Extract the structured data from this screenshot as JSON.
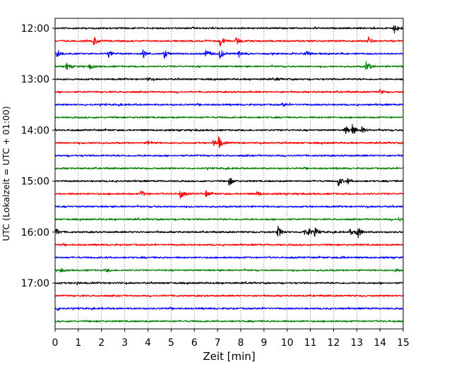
{
  "chart_data": {
    "type": "line",
    "title": "",
    "xlabel": "Zeit  [min]",
    "ylabel": "UTC (Lokalzeit = UTC + 01:00)",
    "xlim": [
      0,
      15
    ],
    "x_ticks": [
      "0",
      "1",
      "2",
      "3",
      "4",
      "5",
      "6",
      "7",
      "8",
      "9",
      "10",
      "11",
      "12",
      "13",
      "14",
      "15"
    ],
    "x_grid": "dotted vertical lines at each minute",
    "y_tick_labels": [
      "12:00",
      "13:00",
      "14:00",
      "15:00",
      "16:00",
      "17:00"
    ],
    "trace_interval_min": 15,
    "color_cycle": [
      "#000000",
      "#ff0000",
      "#0000ff",
      "#008000"
    ],
    "traces": [
      {
        "start": "12:00",
        "color": "#000000",
        "events": [
          {
            "t": 14.6,
            "amp": 1.0
          }
        ]
      },
      {
        "start": "12:15",
        "color": "#ff0000",
        "events": [
          {
            "t": 1.65,
            "amp": 1.0
          },
          {
            "t": 7.1,
            "amp": 1.0
          },
          {
            "t": 7.8,
            "amp": 0.8
          },
          {
            "t": 13.5,
            "amp": 0.7
          }
        ]
      },
      {
        "start": "12:30",
        "color": "#0000ff",
        "events": [
          {
            "t": 0.1,
            "amp": 0.8
          },
          {
            "t": 2.3,
            "amp": 0.6
          },
          {
            "t": 3.8,
            "amp": 0.7
          },
          {
            "t": 4.7,
            "amp": 0.8
          },
          {
            "t": 6.5,
            "amp": 0.7
          },
          {
            "t": 7.1,
            "amp": 0.9
          },
          {
            "t": 7.9,
            "amp": 0.6
          },
          {
            "t": 10.8,
            "amp": 0.6
          }
        ]
      },
      {
        "start": "12:45",
        "color": "#008000",
        "events": [
          {
            "t": 0.5,
            "amp": 0.6
          },
          {
            "t": 1.5,
            "amp": 0.4
          },
          {
            "t": 13.4,
            "amp": 1.0
          }
        ]
      },
      {
        "start": "13:00",
        "color": "#000000",
        "events": [
          {
            "t": 4.0,
            "amp": 0.25
          },
          {
            "t": 9.5,
            "amp": 0.25
          }
        ]
      },
      {
        "start": "13:15",
        "color": "#ff0000",
        "events": [
          {
            "t": 14.0,
            "amp": 0.35
          }
        ]
      },
      {
        "start": "13:30",
        "color": "#0000ff",
        "events": [
          {
            "t": 9.8,
            "amp": 0.3
          }
        ]
      },
      {
        "start": "13:45",
        "color": "#008000",
        "events": []
      },
      {
        "start": "14:00",
        "color": "#000000",
        "events": [
          {
            "t": 12.5,
            "amp": 0.8
          },
          {
            "t": 12.8,
            "amp": 1.0
          },
          {
            "t": 13.2,
            "amp": 0.6
          }
        ]
      },
      {
        "start": "14:15",
        "color": "#ff0000",
        "events": [
          {
            "t": 4.0,
            "amp": 0.4
          },
          {
            "t": 6.8,
            "amp": 0.7
          },
          {
            "t": 7.05,
            "amp": 1.0
          }
        ]
      },
      {
        "start": "14:30",
        "color": "#0000ff",
        "events": []
      },
      {
        "start": "14:45",
        "color": "#008000",
        "events": []
      },
      {
        "start": "15:00",
        "color": "#000000",
        "events": [
          {
            "t": 7.5,
            "amp": 0.8
          },
          {
            "t": 12.2,
            "amp": 0.9
          },
          {
            "t": 12.6,
            "amp": 0.5
          }
        ]
      },
      {
        "start": "15:15",
        "color": "#ff0000",
        "events": [
          {
            "t": 3.7,
            "amp": 0.6
          },
          {
            "t": 5.4,
            "amp": 0.9
          },
          {
            "t": 6.5,
            "amp": 0.5
          },
          {
            "t": 8.7,
            "amp": 0.4
          }
        ]
      },
      {
        "start": "15:30",
        "color": "#0000ff",
        "events": []
      },
      {
        "start": "15:45",
        "color": "#008000",
        "events": [
          {
            "t": 14.8,
            "amp": 0.3
          }
        ]
      },
      {
        "start": "16:00",
        "color": "#000000",
        "events": [
          {
            "t": 0.05,
            "amp": 0.6
          },
          {
            "t": 9.6,
            "amp": 1.0
          },
          {
            "t": 10.7,
            "amp": 0.6
          },
          {
            "t": 10.9,
            "amp": 0.7
          },
          {
            "t": 11.2,
            "amp": 0.7
          },
          {
            "t": 12.7,
            "amp": 0.5
          },
          {
            "t": 13.0,
            "amp": 1.5
          }
        ]
      },
      {
        "start": "16:15",
        "color": "#ff0000",
        "events": []
      },
      {
        "start": "16:30",
        "color": "#0000ff",
        "events": [
          {
            "t": 12.3,
            "amp": 0.3
          }
        ]
      },
      {
        "start": "16:45",
        "color": "#008000",
        "events": [
          {
            "t": 0.2,
            "amp": 0.35
          },
          {
            "t": 2.2,
            "amp": 0.3
          },
          {
            "t": 14.7,
            "amp": 0.3
          }
        ]
      },
      {
        "start": "17:00",
        "color": "#000000",
        "events": [
          {
            "t": 0.9,
            "amp": 0.3
          }
        ]
      },
      {
        "start": "17:15",
        "color": "#ff0000",
        "events": []
      },
      {
        "start": "17:30",
        "color": "#0000ff",
        "events": [
          {
            "t": 0.1,
            "amp": 0.3
          }
        ]
      },
      {
        "start": "17:45",
        "color": "#008000",
        "events": []
      }
    ]
  }
}
